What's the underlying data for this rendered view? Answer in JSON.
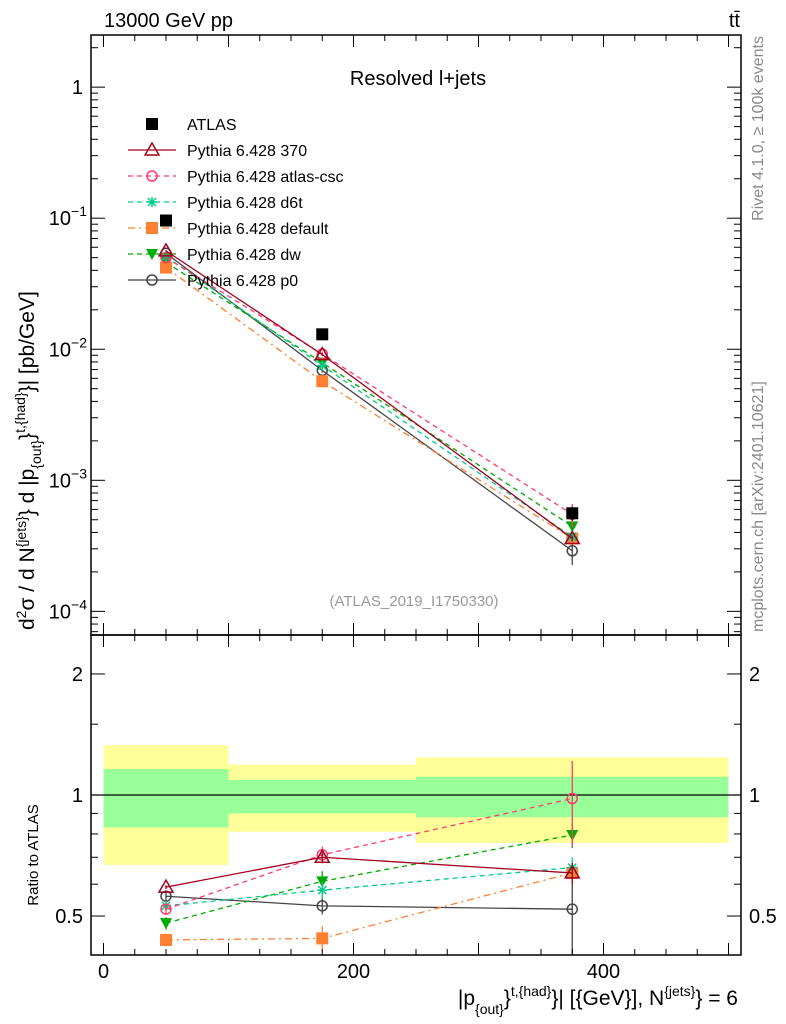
{
  "header": {
    "energy_label": "13000 GeV pp",
    "process_label": "tt̄",
    "rivet_label": "Rivet 4.1.0, ≥ 100k events",
    "mcplots_label": "mcplots.cern.ch [arXiv:2401.10621]"
  },
  "chart_data": [
    {
      "type": "line",
      "title": "Resolved l+jets",
      "analysis_label": "(ATLAS_2019_I1750330)",
      "ylabel": "d²σ / d N^{jets} d |p_{out}^{t,{had}}| [pb/GeV]",
      "ylabel_parts": {
        "a": "d",
        "b": "2",
        "c": "σ / d N",
        "d": "{jets}",
        "e": "} d |p",
        "f": "{out}",
        "g": "}",
        "h": "t,{had}",
        "i": "}| [pb/GeV]"
      },
      "yscale": "log",
      "ylim": [
        6.6e-05,
        2.5
      ],
      "xlim": [
        -10,
        510
      ],
      "yticks": [
        {
          "v": 1,
          "label": "1"
        },
        {
          "v": 0.1,
          "label": "10",
          "exp": "−1"
        },
        {
          "v": 0.01,
          "label": "10",
          "exp": "−2"
        },
        {
          "v": 0.001,
          "label": "10",
          "exp": "−3"
        },
        {
          "v": 0.0001,
          "label": "10",
          "exp": "−4"
        }
      ],
      "bins": [
        [
          0,
          100
        ],
        [
          100,
          250
        ],
        [
          250,
          500
        ]
      ],
      "x": [
        50,
        175,
        375
      ],
      "legend_position": "top-left",
      "series": [
        {
          "name": "ATLAS",
          "color": "#000000",
          "marker": "square",
          "style": "none",
          "values": [
            0.096,
            0.013,
            0.00056
          ],
          "rel_err": [
            0.02,
            0.03,
            0.12
          ]
        },
        {
          "name": "Pythia 6.428 370",
          "color": "#a0001e",
          "marker": "triangle-open",
          "style": "solid",
          "values": [
            0.0563,
            0.0091,
            0.00036
          ],
          "rel_err": [
            0.01,
            0.02,
            0.05
          ]
        },
        {
          "name": "Pythia 6.428 atlas-csc",
          "color": "#ff3b6b",
          "marker": "circle-open",
          "style": "dashed",
          "values": [
            0.05,
            0.0092,
            0.00055
          ],
          "rel_err": [
            0.02,
            0.04,
            0.2
          ]
        },
        {
          "name": "Pythia 6.428 d6t",
          "color": "#00cc88",
          "marker": "star",
          "style": "dashed",
          "values": [
            0.051,
            0.0075,
            0.00037
          ],
          "rel_err": [
            0.02,
            0.04,
            0.05
          ]
        },
        {
          "name": "Pythia 6.428 default",
          "color": "#ff8033",
          "marker": "square",
          "style": "dashdot",
          "values": [
            0.042,
            0.0057,
            0.00036
          ],
          "rel_err": [
            0.03,
            0.06,
            0.05
          ]
        },
        {
          "name": "Pythia 6.428 dw",
          "color": "#00aa00",
          "marker": "triangle-down",
          "style": "dashed",
          "values": [
            0.046,
            0.0079,
            0.000445
          ],
          "rel_err": [
            0.03,
            0.05,
            0.06
          ]
        },
        {
          "name": "Pythia 6.428 p0",
          "color": "#444444",
          "marker": "circle-open",
          "style": "solid",
          "values": [
            0.054,
            0.0069,
            0.00029
          ],
          "rel_err": [
            0.02,
            0.04,
            0.22
          ]
        }
      ]
    },
    {
      "type": "line",
      "ylabel": "Ratio to ATLAS",
      "xlabel_parts": {
        "a": "|p",
        "b": "{out}",
        "c": "}",
        "d": "t,{had}",
        "e": "}| [{GeV}], N",
        "f": "{jets}",
        "g": "} = 6"
      },
      "yscale": "log",
      "ylim": [
        0.4,
        2.5
      ],
      "yticks": [
        {
          "v": 0.5,
          "label": "0.5"
        },
        {
          "v": 1,
          "label": "1"
        },
        {
          "v": 2,
          "label": "2"
        }
      ],
      "xticks": [
        {
          "v": 0,
          "label": "0"
        },
        {
          "v": 200,
          "label": "200"
        },
        {
          "v": 400,
          "label": "400"
        }
      ],
      "bands": {
        "inner": {
          "color": "#99ff99",
          "low": [
            0.83,
            0.9,
            0.88
          ],
          "high": [
            1.16,
            1.09,
            1.11
          ]
        },
        "outer": {
          "color": "#ffff99",
          "low": [
            0.67,
            0.81,
            0.76
          ],
          "high": [
            1.33,
            1.19,
            1.24
          ]
        }
      },
      "ratios": [
        {
          "name": "Pythia 6.428 370",
          "values": [
            0.59,
            0.7,
            0.64
          ]
        },
        {
          "name": "Pythia 6.428 atlas-csc",
          "values": [
            0.52,
            0.71,
            0.98
          ]
        },
        {
          "name": "Pythia 6.428 d6t",
          "values": [
            0.53,
            0.58,
            0.66
          ]
        },
        {
          "name": "Pythia 6.428 default",
          "values": [
            0.436,
            0.44,
            0.64
          ]
        },
        {
          "name": "Pythia 6.428 dw",
          "values": [
            0.48,
            0.61,
            0.795
          ]
        },
        {
          "name": "Pythia 6.428 p0",
          "values": [
            0.56,
            0.53,
            0.52
          ]
        }
      ]
    }
  ]
}
